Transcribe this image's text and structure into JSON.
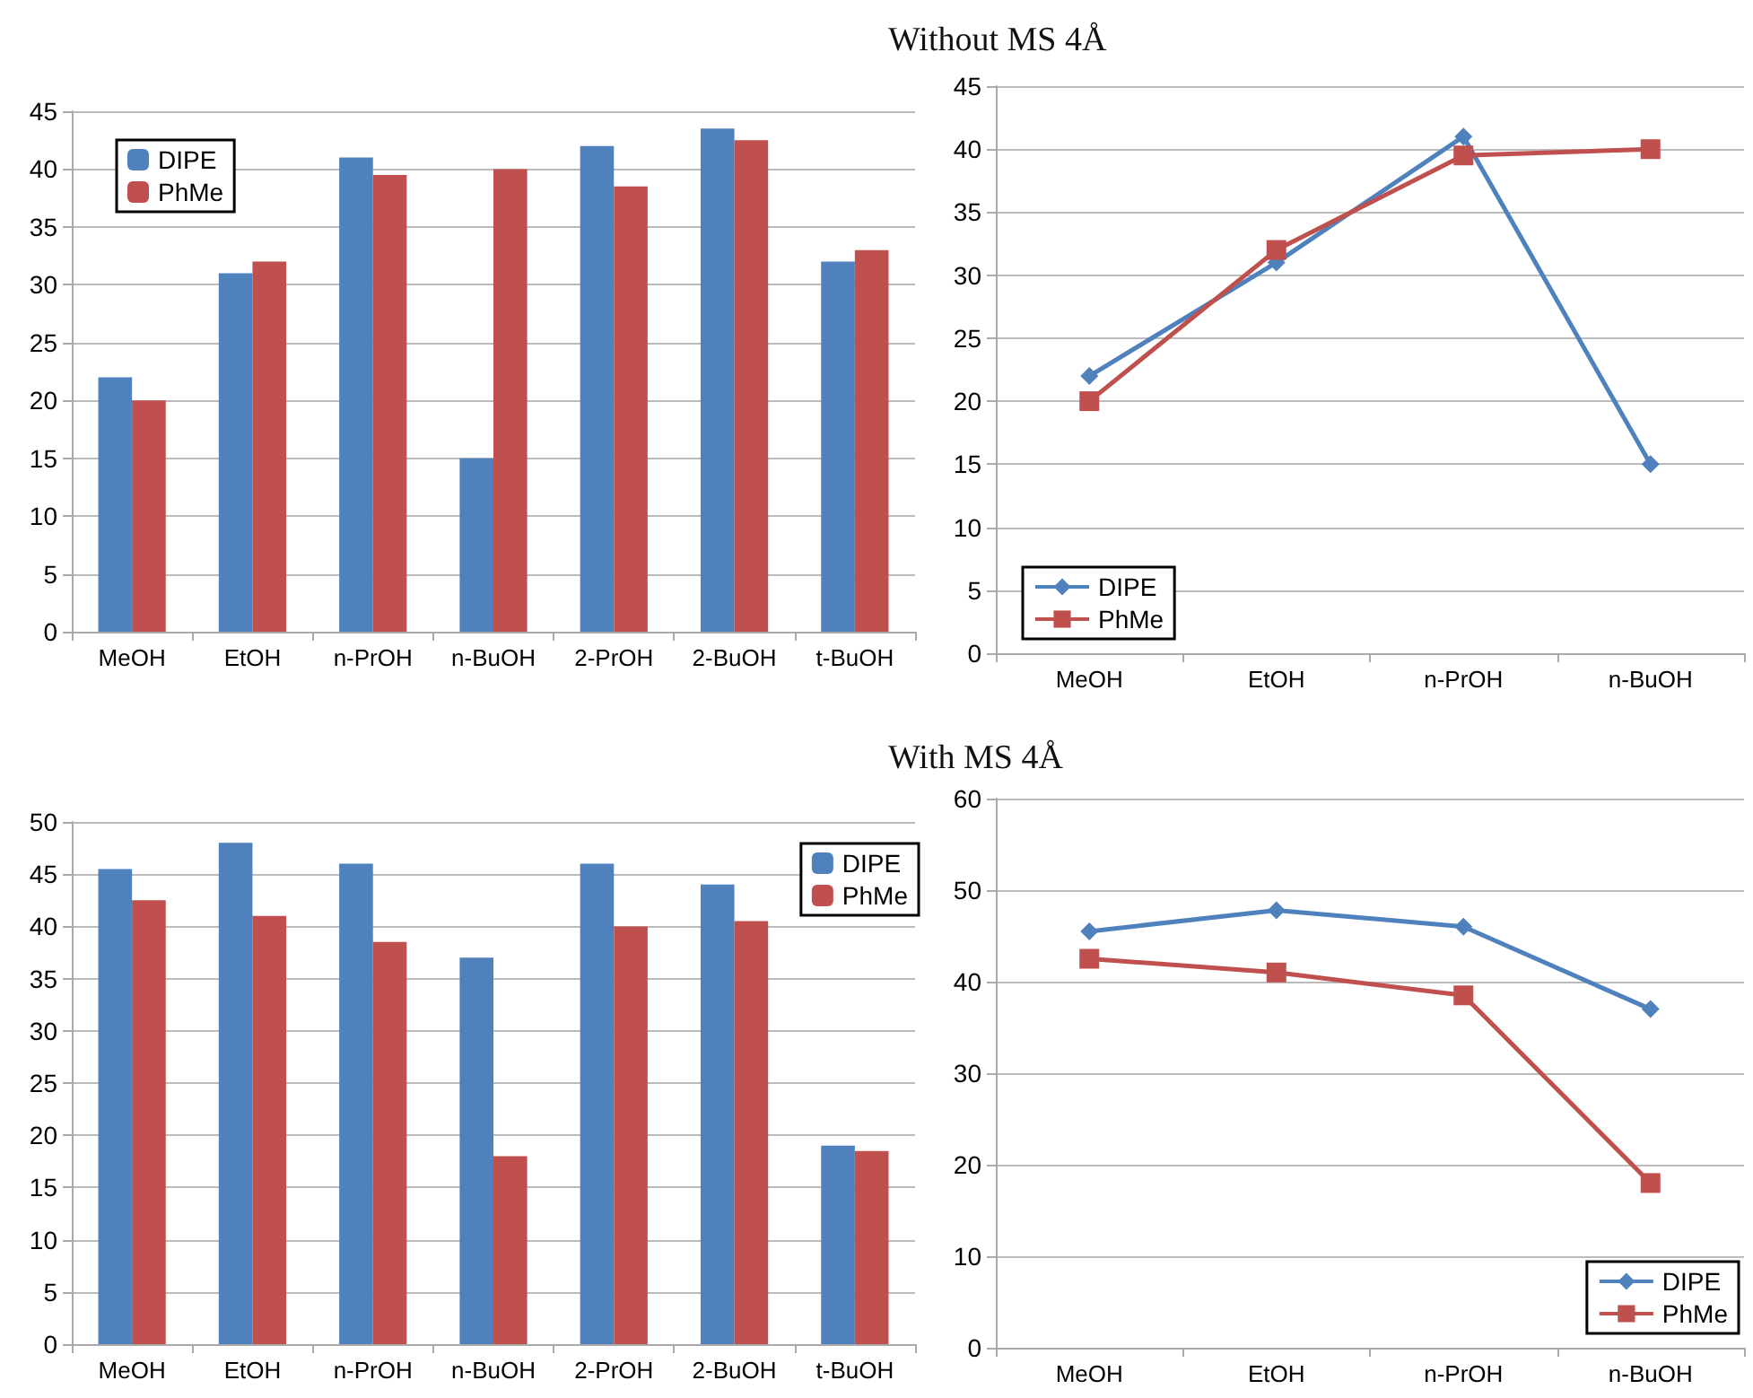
{
  "chart_data": [
    {
      "type": "bar",
      "categories": [
        "MeOH",
        "EtOH",
        "n-PrOH",
        "n-BuOH",
        "2-PrOH",
        "2-BuOH",
        "t-BuOH"
      ],
      "series": [
        {
          "name": "DIPE",
          "color": "#4f81bd",
          "values": [
            22,
            31,
            41,
            15,
            42,
            43.5,
            32
          ]
        },
        {
          "name": "PhMe",
          "color": "#c0504d",
          "values": [
            20,
            32,
            39.5,
            40,
            38.5,
            42.5,
            33
          ]
        }
      ],
      "ylim": [
        0,
        45
      ],
      "yticks": [
        0,
        5,
        10,
        15,
        20,
        25,
        30,
        35,
        40,
        45
      ],
      "grid": "y",
      "legend": "top left"
    },
    {
      "type": "line",
      "title": "Without MS 4Å",
      "categories": [
        "MeOH",
        "EtOH",
        "n-PrOH",
        "n-BuOH"
      ],
      "series": [
        {
          "name": "DIPE",
          "color": "#4f81bd",
          "marker": "diamond",
          "values": [
            22,
            31,
            41,
            15
          ]
        },
        {
          "name": "PhMe",
          "color": "#c0504d",
          "marker": "square",
          "values": [
            20,
            32,
            39.5,
            40
          ]
        }
      ],
      "ylim": [
        0,
        45
      ],
      "yticks": [
        0,
        5,
        10,
        15,
        20,
        25,
        30,
        35,
        40,
        45
      ],
      "grid": "y",
      "legend": "bottom left"
    },
    {
      "type": "bar",
      "categories": [
        "MeOH",
        "EtOH",
        "n-PrOH",
        "n-BuOH",
        "2-PrOH",
        "2-BuOH",
        "t-BuOH"
      ],
      "series": [
        {
          "name": "DIPE",
          "color": "#4f81bd",
          "values": [
            45.5,
            48,
            46,
            37,
            46,
            44,
            19
          ]
        },
        {
          "name": "PhMe",
          "color": "#c0504d",
          "values": [
            42.5,
            41,
            38.5,
            18,
            40,
            40.5,
            18.5
          ]
        }
      ],
      "ylim": [
        0,
        50
      ],
      "yticks": [
        0,
        5,
        10,
        15,
        20,
        25,
        30,
        35,
        40,
        45,
        50
      ],
      "grid": "y",
      "legend": "top right"
    },
    {
      "type": "line",
      "title": "With MS 4Å",
      "categories": [
        "MeOH",
        "EtOH",
        "n-PrOH",
        "n-BuOH"
      ],
      "series": [
        {
          "name": "DIPE",
          "color": "#4f81bd",
          "marker": "diamond",
          "values": [
            45.5,
            47.8,
            46,
            37
          ]
        },
        {
          "name": "PhMe",
          "color": "#c0504d",
          "marker": "square",
          "values": [
            42.5,
            41,
            38.5,
            18
          ]
        }
      ],
      "ylim": [
        0,
        60
      ],
      "yticks": [
        0,
        10,
        20,
        30,
        40,
        50,
        60
      ],
      "grid": "y",
      "legend": "bottom right"
    }
  ]
}
